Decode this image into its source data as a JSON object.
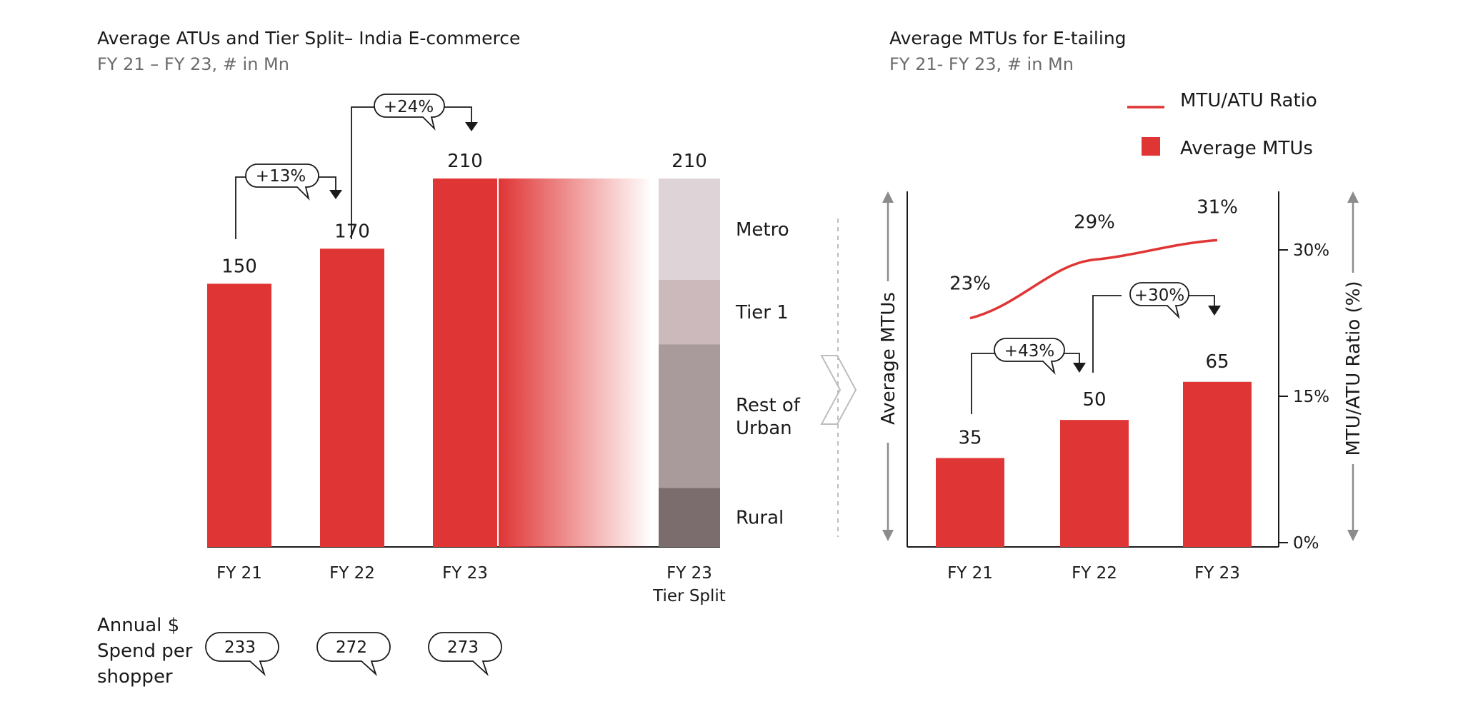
{
  "left": {
    "title": "Average ATUs and Tier Split– India E-commerce",
    "subtitle": "FY 21 – FY 23, # in Mn",
    "growth": [
      "+13%",
      "+24%"
    ],
    "spend_label": [
      "Annual $",
      "Spend per",
      "shopper"
    ],
    "spend_values": [
      "233",
      "272",
      "273"
    ],
    "tier_total": "210",
    "tier_category_label": [
      "FY 23",
      "Tier Split"
    ]
  },
  "right": {
    "title": "Average MTUs for E-tailing",
    "subtitle": "FY 21- FY 23, # in Mn",
    "growth": [
      "+43%",
      "+30%"
    ]
  },
  "colors": {
    "bar": "#e03535",
    "line": "#e03535",
    "tiers": [
      "#ded4d7",
      "#cbb9bb",
      "#a99a9b",
      "#7b6c6d"
    ]
  },
  "chart_data": [
    {
      "type": "bar",
      "title": "Average ATUs and Tier Split– India E-commerce",
      "subtitle": "FY 21 – FY 23, # in Mn",
      "categories": [
        "FY 21",
        "FY 22",
        "FY 23"
      ],
      "values": [
        150,
        170,
        210
      ],
      "value_labels": [
        "150",
        "170",
        "210"
      ],
      "ylim": [
        0,
        210
      ],
      "grid": false,
      "tier_split": {
        "category": "FY 23 Tier Split",
        "total": 210,
        "segments": [
          {
            "name": "Metro",
            "label_lines": [
              "Metro"
            ],
            "share": 0.275
          },
          {
            "name": "Tier 1",
            "label_lines": [
              "Tier 1"
            ],
            "share": 0.175
          },
          {
            "name": "Rest of Urban",
            "label_lines": [
              "Rest of",
              "Urban"
            ],
            "share": 0.39
          },
          {
            "name": "Rural",
            "label_lines": [
              "Rural"
            ],
            "share": 0.16
          }
        ]
      }
    },
    {
      "type": "bar",
      "title": "Average MTUs for E-tailing",
      "subtitle": "FY 21- FY 23, # in Mn",
      "categories": [
        "FY 21",
        "FY 22",
        "FY 23"
      ],
      "ylabel": "Average MTUs",
      "y2label": "MTU/ATU Ratio (%)",
      "y2ticks": [
        "0%",
        "15%",
        "30%"
      ],
      "y2lim": [
        0,
        30
      ],
      "ylim": [
        0,
        140
      ],
      "legend_position": "top-right",
      "grid": false,
      "series": [
        {
          "name": "Average MTUs",
          "type": "bar",
          "values": [
            35,
            50,
            65
          ],
          "labels": [
            "35",
            "50",
            "65"
          ]
        },
        {
          "name": "MTU/ATU Ratio",
          "type": "line",
          "axis": "right",
          "values": [
            23,
            29,
            31
          ],
          "labels": [
            "23%",
            "29%",
            "31%"
          ]
        }
      ]
    }
  ]
}
